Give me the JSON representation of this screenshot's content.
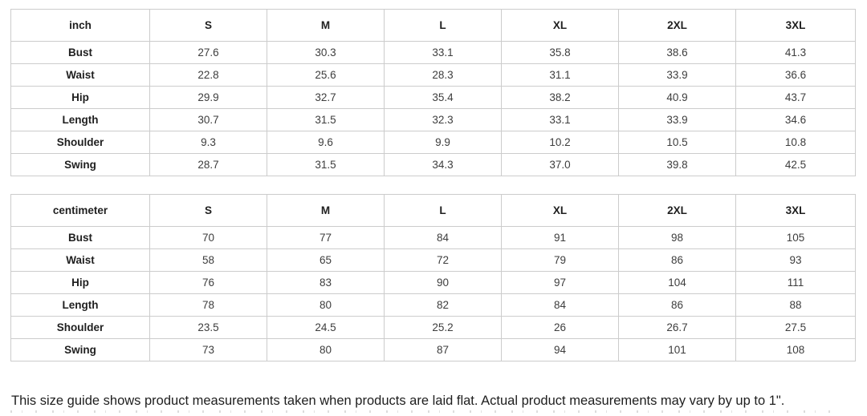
{
  "chart_data": [
    {
      "type": "table",
      "unit": "inch",
      "sizes": [
        "S",
        "M",
        "L",
        "XL",
        "2XL",
        "3XL"
      ],
      "rows": [
        {
          "label": "Bust",
          "values": [
            "27.6",
            "30.3",
            "33.1",
            "35.8",
            "38.6",
            "41.3"
          ]
        },
        {
          "label": "Waist",
          "values": [
            "22.8",
            "25.6",
            "28.3",
            "31.1",
            "33.9",
            "36.6"
          ]
        },
        {
          "label": "Hip",
          "values": [
            "29.9",
            "32.7",
            "35.4",
            "38.2",
            "40.9",
            "43.7"
          ]
        },
        {
          "label": "Length",
          "values": [
            "30.7",
            "31.5",
            "32.3",
            "33.1",
            "33.9",
            "34.6"
          ]
        },
        {
          "label": "Shoulder",
          "values": [
            "9.3",
            "9.6",
            "9.9",
            "10.2",
            "10.5",
            "10.8"
          ]
        },
        {
          "label": "Swing",
          "values": [
            "28.7",
            "31.5",
            "34.3",
            "37.0",
            "39.8",
            "42.5"
          ]
        }
      ]
    },
    {
      "type": "table",
      "unit": "centimeter",
      "sizes": [
        "S",
        "M",
        "L",
        "XL",
        "2XL",
        "3XL"
      ],
      "rows": [
        {
          "label": "Bust",
          "values": [
            "70",
            "77",
            "84",
            "91",
            "98",
            "105"
          ]
        },
        {
          "label": "Waist",
          "values": [
            "58",
            "65",
            "72",
            "79",
            "86",
            "93"
          ]
        },
        {
          "label": "Hip",
          "values": [
            "76",
            "83",
            "90",
            "97",
            "104",
            "111"
          ]
        },
        {
          "label": "Length",
          "values": [
            "78",
            "80",
            "82",
            "84",
            "86",
            "88"
          ]
        },
        {
          "label": "Shoulder",
          "values": [
            "23.5",
            "24.5",
            "25.2",
            "26",
            "26.7",
            "27.5"
          ]
        },
        {
          "label": "Swing",
          "values": [
            "73",
            "80",
            "87",
            "94",
            "101",
            "108"
          ]
        }
      ]
    }
  ],
  "note": "This size guide shows product measurements taken when products are laid flat. Actual product measurements may vary by up to 1\".",
  "colors": {
    "border": "#cccccc",
    "header_text": "#1f1f1f",
    "cell_text": "#3d3d3d",
    "note_text": "#1e1e1e",
    "background": "#ffffff"
  }
}
